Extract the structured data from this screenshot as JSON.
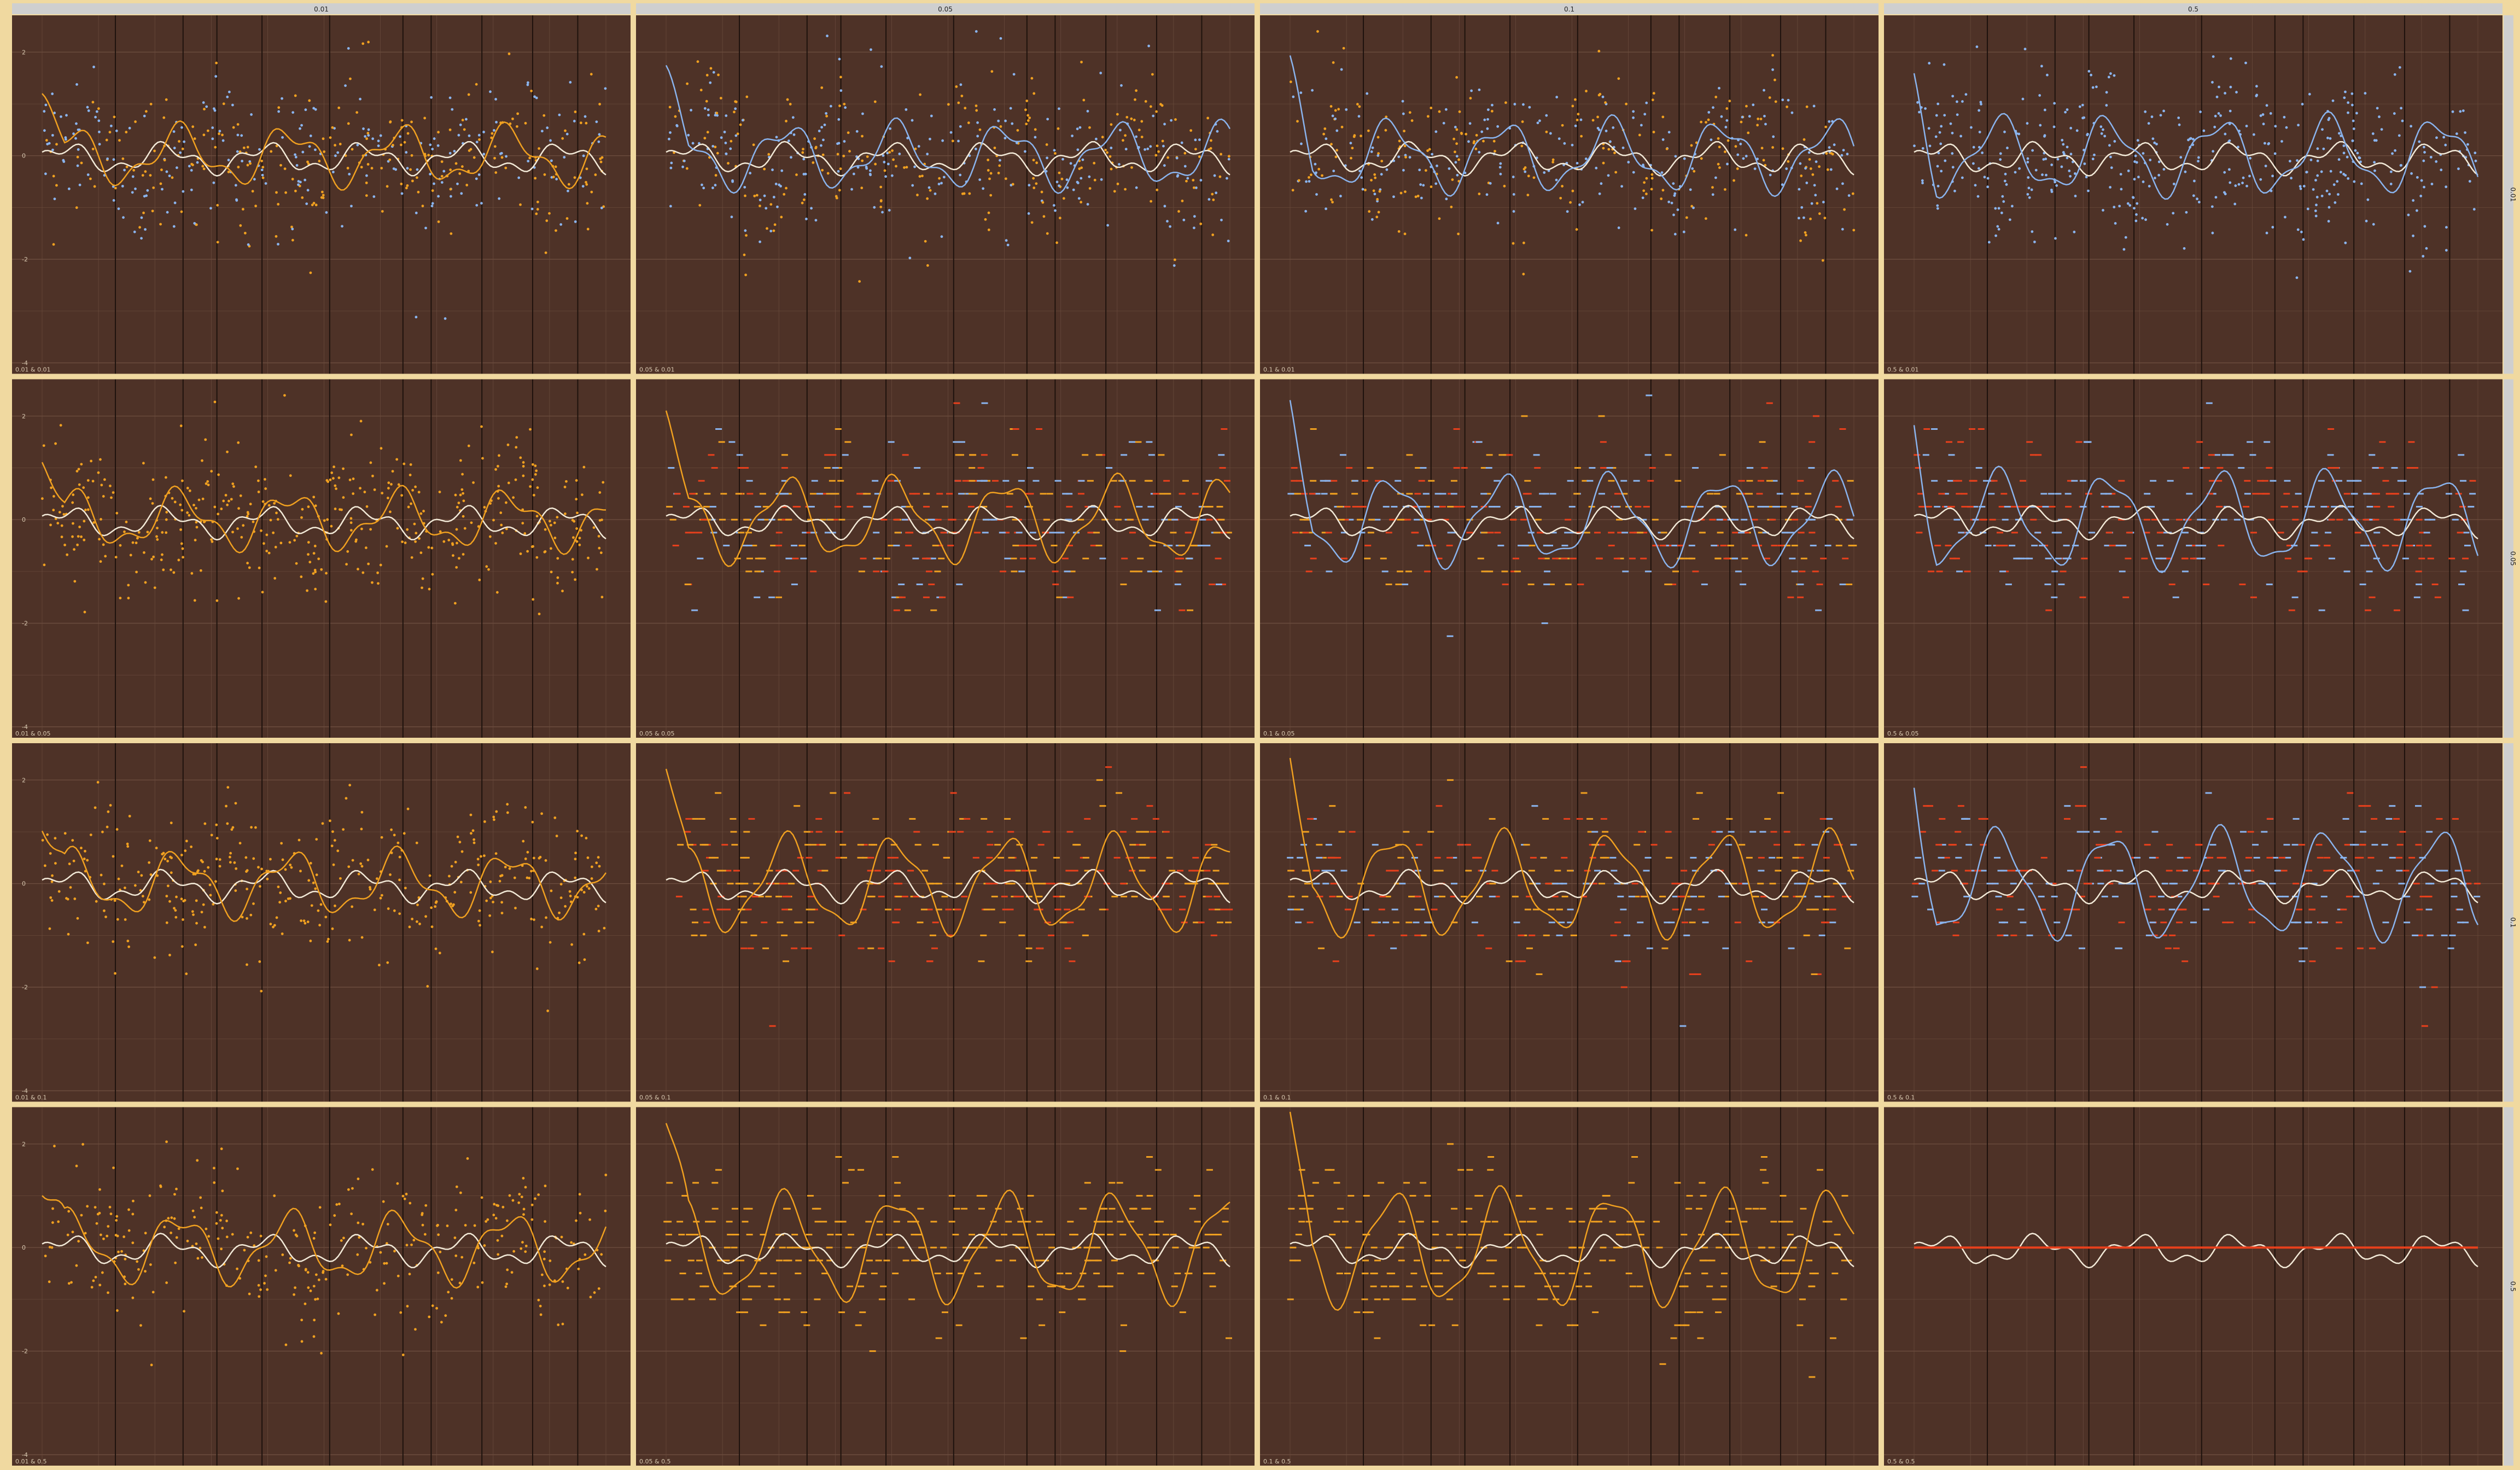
{
  "figure": {
    "col_strip_labels": [
      "0.01",
      "0.05",
      "0.1",
      "0.5"
    ],
    "row_strip_labels": [
      "0.01",
      "0.05",
      "0.1",
      "0.5"
    ],
    "panel_labels": [
      [
        "0.01 & 0.01",
        "0.05 & 0.01",
        "0.1 & 0.01",
        "0.5 & 0.01"
      ],
      [
        "0.01 & 0.05",
        "0.05 & 0.05",
        "0.1 & 0.05",
        "0.5 & 0.05"
      ],
      [
        "0.01 & 0.1",
        "0.05 & 0.1",
        "0.1 & 0.1",
        "0.5 & 0.1"
      ],
      [
        "0.01 & 0.5",
        "0.05 & 0.5",
        "0.1 & 0.5",
        "0.5 & 0.5"
      ]
    ]
  },
  "colors": {
    "page_background": "#f0d9a0",
    "strip_background": "#cfcfcf",
    "panel_background": "#4e3227",
    "gridline": "#6b4c3e",
    "vertical_marker": "#1e120d",
    "reference_curve": "#f3ead8",
    "orange": "#f0a020",
    "blue": "#8ab4ee",
    "red": "#e8401c"
  },
  "chart_data": {
    "type": "scatter",
    "layout": "faceted 4x4 grid of scatter plots with smoothed line overlays",
    "description_of_facets": "columns and rows are labelled by a parameter value; each panel is labelled with its column & row values",
    "y_ticks": [
      "2",
      "0",
      "-2",
      "-4"
    ],
    "ylim": [
      -4,
      2.5
    ],
    "xlim": [
      0,
      1000
    ],
    "grid": true,
    "legend": "none",
    "vertical_markers_x": [
      130,
      250,
      310,
      390,
      510,
      640,
      690,
      780,
      870,
      950
    ],
    "series_colors": {
      "0.01 & 0.01": [
        "orange",
        "blue"
      ],
      "0.05 & 0.01": [
        "blue",
        "orange"
      ],
      "0.1 & 0.01": [
        "blue",
        "orange"
      ],
      "0.5 & 0.01": [
        "blue"
      ],
      "0.01 & 0.05": [
        "orange"
      ],
      "0.05 & 0.05": [
        "orange",
        "blue",
        "red"
      ],
      "0.1 & 0.05": [
        "blue",
        "orange",
        "red"
      ],
      "0.5 & 0.05": [
        "blue",
        "red"
      ],
      "0.01 & 0.1": [
        "orange"
      ],
      "0.05 & 0.1": [
        "orange",
        "red"
      ],
      "0.1 & 0.1": [
        "orange",
        "red",
        "blue"
      ],
      "0.5 & 0.1": [
        "blue",
        "red"
      ],
      "0.01 & 0.5": [
        "orange"
      ],
      "0.05 & 0.5": [
        "orange"
      ],
      "0.1 & 0.5": [
        "orange"
      ],
      "0.5 & 0.5": [
        "red"
      ]
    },
    "smoothness": [
      [
        0.02,
        0.03,
        0.04,
        0.05
      ],
      [
        0.02,
        0.06,
        0.07,
        0.08
      ],
      [
        0.03,
        0.08,
        0.09,
        0.1
      ],
      [
        0.04,
        0.1,
        0.11,
        0.0
      ]
    ]
  }
}
